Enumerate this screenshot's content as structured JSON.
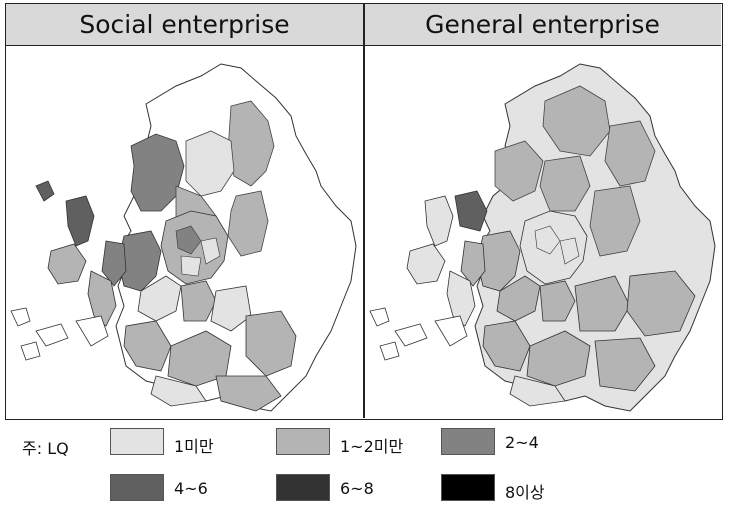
{
  "panels": {
    "left_title": "Social enterprise",
    "right_title": "General enterprise"
  },
  "legend": {
    "prefix": "주: LQ",
    "items": [
      {
        "label": "1미만",
        "color": "#e3e3e3"
      },
      {
        "label": "1~2미만",
        "color": "#b4b4b4"
      },
      {
        "label": "2~4",
        "color": "#828282"
      },
      {
        "label": "4~6",
        "color": "#606060"
      },
      {
        "label": "6~8",
        "color": "#333333"
      },
      {
        "label": "8이상",
        "color": "#000000"
      }
    ]
  },
  "map_colors": {
    "white": "#ffffff",
    "class1": "#e3e3e3",
    "class2": "#b4b4b4",
    "class3": "#828282",
    "class4": "#606060",
    "outline": "#333333"
  }
}
